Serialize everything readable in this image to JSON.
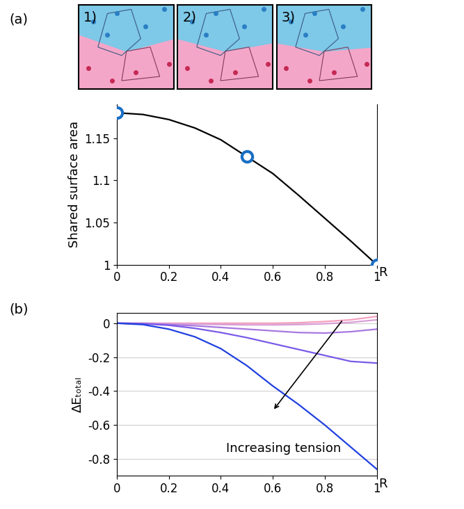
{
  "panel_labels": [
    "(a)",
    "(b)"
  ],
  "images": [
    "1)",
    "2)",
    "3)"
  ],
  "chart_data": [
    {
      "type": "line",
      "x": [
        0,
        0.1,
        0.2,
        0.3,
        0.4,
        0.5,
        0.6,
        0.7,
        0.8,
        0.9,
        1
      ],
      "series": [
        {
          "type": "line",
          "color": "#000000",
          "line_style": "solid",
          "values": [
            1.18,
            1.178,
            1.172,
            1.162,
            1.148,
            1.128,
            1.108,
            1.082,
            1.055,
            1.028,
            1.0
          ]
        },
        {
          "type": "scatter",
          "color": "#1a6fc4",
          "marker": "o",
          "line_style": "none",
          "values": [
            1.18,
            null,
            null,
            null,
            null,
            1.128,
            null,
            null,
            null,
            null,
            1.0
          ]
        }
      ],
      "x_label": "R",
      "y_label": "Shared surface area",
      "xlim": [
        0,
        1
      ],
      "xticks": [
        0,
        0.2,
        0.4,
        0.6,
        0.8,
        1
      ],
      "ylim": [
        1,
        1.19
      ],
      "yticks": [
        1,
        1.05,
        1.1,
        1.15
      ],
      "grid": false
    },
    {
      "type": "line",
      "x": [
        0,
        0.1,
        0.2,
        0.3,
        0.4,
        0.5,
        0.6,
        0.7,
        0.8,
        0.9,
        1
      ],
      "series": [
        {
          "color": "#f4a0c0",
          "line_style": "solid",
          "values": [
            0,
            0,
            0,
            0,
            0,
            0,
            0,
            0.003,
            0.01,
            0.02,
            0.04
          ]
        },
        {
          "color": "#d99fd6",
          "line_style": "solid",
          "values": [
            0,
            0,
            -0.002,
            -0.005,
            -0.008,
            -0.01,
            -0.01,
            -0.008,
            -0.003,
            0.005,
            0.02
          ]
        },
        {
          "color": "#a878e0",
          "line_style": "solid",
          "values": [
            0,
            -0.002,
            -0.008,
            -0.015,
            -0.025,
            -0.035,
            -0.045,
            -0.055,
            -0.058,
            -0.05,
            -0.035
          ]
        },
        {
          "color": "#7a5ae8",
          "line_style": "solid",
          "values": [
            0,
            -0.003,
            -0.012,
            -0.03,
            -0.055,
            -0.085,
            -0.12,
            -0.155,
            -0.19,
            -0.225,
            -0.235
          ]
        },
        {
          "color": "#2040e0",
          "line_style": "solid",
          "values": [
            0,
            -0.008,
            -0.035,
            -0.08,
            -0.15,
            -0.25,
            -0.37,
            -0.48,
            -0.6,
            -0.73,
            -0.86
          ]
        }
      ],
      "x_label": "R",
      "y_label": "ΔEₜₒₜₐₗ",
      "annotations": [
        "Increasing tension"
      ],
      "xlim": [
        0,
        1
      ],
      "xticks": [
        0,
        0.2,
        0.4,
        0.6,
        0.8,
        1
      ],
      "ylim": [
        -0.9,
        0.06
      ],
      "yticks": [
        -0.8,
        -0.6,
        -0.4,
        -0.2,
        0
      ],
      "grid": "y"
    }
  ]
}
